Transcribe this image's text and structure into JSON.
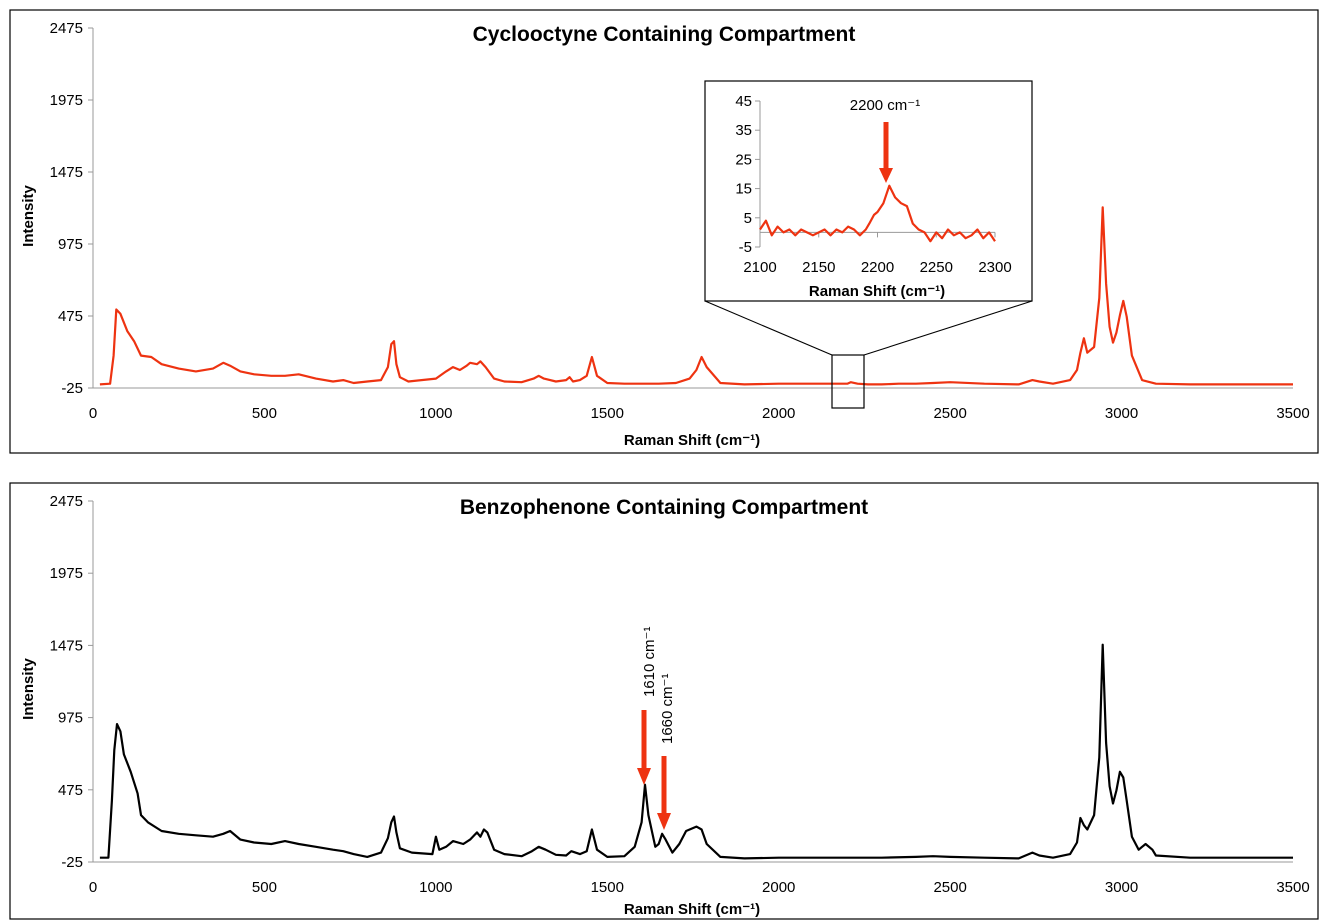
{
  "chart_data": [
    {
      "type": "line",
      "title": "Cyclooctyne Containing Compartment",
      "xlabel": "Raman Shift (cm⁻¹)",
      "ylabel": "Intensity",
      "xlim": [
        0,
        3500
      ],
      "ylim": [
        -25,
        2475
      ],
      "x_ticks": [
        "0",
        "500",
        "1000",
        "1500",
        "2000",
        "2500",
        "3000",
        "3500"
      ],
      "y_ticks": [
        "-25",
        "475",
        "975",
        "1475",
        "1975",
        "2475"
      ],
      "grid": false,
      "color": "#ee3311",
      "series": [
        {
          "x": [
            20,
            50,
            60,
            68,
            80,
            100,
            120,
            140,
            170,
            200,
            250,
            300,
            350,
            380,
            400,
            430,
            470,
            520,
            560,
            600,
            650,
            700,
            730,
            760,
            800,
            840,
            860,
            870,
            878,
            885,
            895,
            920,
            1000,
            1030,
            1050,
            1070,
            1090,
            1100,
            1120,
            1130,
            1145,
            1170,
            1200,
            1250,
            1285,
            1300,
            1315,
            1350,
            1380,
            1390,
            1400,
            1420,
            1440,
            1455,
            1470,
            1500,
            1550,
            1600,
            1650,
            1700,
            1740,
            1760,
            1775,
            1790,
            1830,
            1900,
            2000,
            2100,
            2150,
            2200,
            2210,
            2230,
            2260,
            2300,
            2350,
            2400,
            2450,
            2500,
            2600,
            2700,
            2740,
            2760,
            2800,
            2850,
            2870,
            2880,
            2890,
            2900,
            2920,
            2935,
            2945,
            2955,
            2965,
            2975,
            2985,
            2995,
            3005,
            3015,
            3030,
            3060,
            3100,
            3200,
            3300,
            3400,
            3500
          ],
          "y": [
            0,
            5,
            200,
            520,
            490,
            370,
            300,
            200,
            190,
            140,
            110,
            90,
            110,
            150,
            130,
            90,
            70,
            60,
            60,
            70,
            40,
            20,
            30,
            10,
            20,
            30,
            120,
            280,
            300,
            140,
            50,
            20,
            40,
            90,
            120,
            100,
            130,
            150,
            140,
            160,
            120,
            40,
            20,
            15,
            40,
            60,
            40,
            20,
            30,
            50,
            20,
            30,
            60,
            190,
            60,
            10,
            5,
            5,
            5,
            10,
            40,
            100,
            190,
            120,
            10,
            0,
            5,
            5,
            5,
            5,
            15,
            5,
            0,
            0,
            5,
            5,
            10,
            15,
            5,
            0,
            30,
            20,
            5,
            30,
            100,
            220,
            320,
            220,
            260,
            600,
            1230,
            700,
            400,
            290,
            360,
            480,
            580,
            470,
            200,
            30,
            5,
            0,
            0,
            0,
            0
          ]
        }
      ],
      "inset": {
        "xlabel": "Raman Shift (cm⁻¹)",
        "xlim": [
          2100,
          2300
        ],
        "ylim": [
          -5,
          45
        ],
        "x_ticks": [
          "2100",
          "2150",
          "2200",
          "2250",
          "2300"
        ],
        "y_ticks": [
          "-5",
          "5",
          "15",
          "25",
          "35",
          "45"
        ],
        "x": [
          2100,
          2105,
          2110,
          2115,
          2120,
          2125,
          2130,
          2135,
          2140,
          2145,
          2150,
          2155,
          2160,
          2165,
          2170,
          2175,
          2180,
          2185,
          2190,
          2193,
          2197,
          2200,
          2205,
          2210,
          2215,
          2220,
          2225,
          2230,
          2235,
          2240,
          2245,
          2250,
          2255,
          2260,
          2265,
          2270,
          2275,
          2280,
          2285,
          2290,
          2295,
          2300
        ],
        "y": [
          1,
          4,
          -1,
          2,
          0,
          1,
          -1,
          1,
          0,
          -1,
          0,
          1,
          -1,
          1,
          0,
          2,
          1,
          -1,
          1,
          3,
          6,
          7,
          10,
          16,
          12,
          10,
          9,
          3,
          1,
          0,
          -3,
          0,
          -2,
          1,
          -1,
          0,
          -2,
          -1,
          1,
          -2,
          0,
          -3
        ],
        "annotation": "2200 cm⁻¹"
      }
    },
    {
      "type": "line",
      "title": "Benzophenone Containing Compartment",
      "xlabel": "Raman Shift (cm⁻¹)",
      "ylabel": "Intensity",
      "xlim": [
        0,
        3500
      ],
      "ylim": [
        -25,
        2475
      ],
      "x_ticks": [
        "0",
        "500",
        "1000",
        "1500",
        "2000",
        "2500",
        "3000",
        "3500"
      ],
      "y_ticks": [
        "-25",
        "475",
        "975",
        "1475",
        "1975",
        "2475"
      ],
      "grid": false,
      "color": "#000000",
      "series": [
        {
          "x": [
            20,
            45,
            55,
            62,
            70,
            80,
            90,
            110,
            130,
            140,
            160,
            200,
            250,
            300,
            350,
            380,
            400,
            430,
            470,
            520,
            560,
            600,
            650,
            700,
            730,
            760,
            800,
            840,
            860,
            870,
            878,
            885,
            895,
            930,
            990,
            1000,
            1010,
            1030,
            1050,
            1080,
            1100,
            1120,
            1130,
            1140,
            1150,
            1170,
            1200,
            1250,
            1280,
            1300,
            1320,
            1350,
            1380,
            1395,
            1420,
            1440,
            1455,
            1470,
            1500,
            1550,
            1580,
            1600,
            1610,
            1620,
            1640,
            1650,
            1660,
            1670,
            1690,
            1710,
            1730,
            1760,
            1775,
            1790,
            1830,
            1900,
            2000,
            2100,
            2200,
            2300,
            2400,
            2450,
            2500,
            2600,
            2700,
            2740,
            2760,
            2800,
            2850,
            2870,
            2880,
            2890,
            2900,
            2920,
            2935,
            2945,
            2955,
            2965,
            2975,
            2985,
            2995,
            3005,
            3015,
            3030,
            3050,
            3060,
            3070,
            3090,
            3100,
            3200,
            3300,
            3400,
            3500
          ],
          "y": [
            5,
            5,
            400,
            750,
            930,
            880,
            720,
            600,
            450,
            300,
            250,
            190,
            170,
            160,
            150,
            170,
            190,
            130,
            110,
            100,
            120,
            100,
            80,
            60,
            50,
            30,
            10,
            40,
            140,
            250,
            290,
            180,
            70,
            40,
            30,
            150,
            60,
            80,
            120,
            100,
            130,
            180,
            150,
            200,
            180,
            60,
            30,
            15,
            50,
            80,
            60,
            25,
            20,
            50,
            30,
            50,
            200,
            60,
            10,
            15,
            80,
            250,
            510,
            300,
            80,
            100,
            170,
            130,
            40,
            100,
            190,
            220,
            200,
            100,
            10,
            0,
            5,
            5,
            5,
            5,
            10,
            15,
            10,
            5,
            0,
            40,
            20,
            5,
            30,
            110,
            280,
            230,
            200,
            300,
            700,
            1480,
            800,
            500,
            380,
            470,
            600,
            560,
            400,
            150,
            60,
            80,
            100,
            60,
            20,
            5,
            5,
            5,
            5
          ]
        }
      ],
      "annotations": [
        "1610 cm⁻¹",
        "1660 cm⁻¹"
      ]
    }
  ]
}
